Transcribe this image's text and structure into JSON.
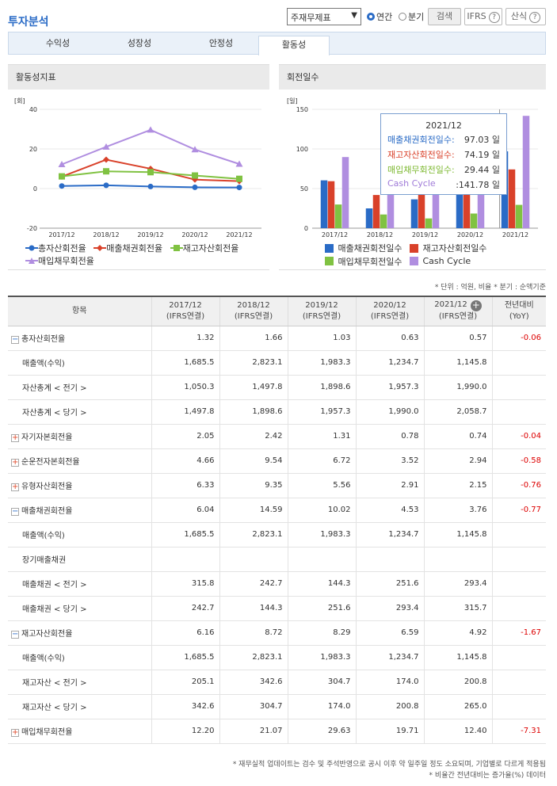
{
  "header": {
    "title": "투자분석",
    "select_value": "주재무제표",
    "radio_annual": "연간",
    "radio_quarter": "분기",
    "search_btn": "검색",
    "ifrs_btn": "IFRS",
    "formula_btn": "산식",
    "help_glyph": "?"
  },
  "tabs": [
    "수익성",
    "성장성",
    "안정성",
    "활동성"
  ],
  "active_tab": 3,
  "left_panel": {
    "title": "활동성지표",
    "unit": "[회]",
    "legend": [
      "총자산회전율",
      "매출채권회전율",
      "재고자산회전율",
      "매입채무회전율"
    ]
  },
  "right_panel": {
    "title": "회전일수",
    "unit": "[일]",
    "legend": [
      "매출채권회전일수",
      "재고자산회전일수",
      "매입채무회전일수",
      "Cash Cycle"
    ]
  },
  "tooltip": {
    "title": "2021/12",
    "rows": [
      {
        "label": "매출채권회전일수:",
        "value": "97.03 일",
        "color": "#2a6bc6"
      },
      {
        "label": "재고자산회전일수:",
        "value": "74.19 일",
        "color": "#d9412a"
      },
      {
        "label": "매입채무회전일수:",
        "value": "29.44 일",
        "color": "#7cb82f"
      },
      {
        "label": "Cash Cycle",
        "value": ":141.78 일",
        "color": "#9f7ad8"
      }
    ]
  },
  "colors": {
    "blue": "#2a6bc6",
    "red": "#d9412a",
    "green": "#80c242",
    "purple": "#b08ee0"
  },
  "chart_data": [
    {
      "type": "line",
      "title": "활동성지표",
      "ylabel": "[회]",
      "categories": [
        "2017/12",
        "2018/12",
        "2019/12",
        "2020/12",
        "2021/12"
      ],
      "ylim": [
        -20,
        40
      ],
      "yticks": [
        "40",
        "20",
        "0",
        "-20"
      ],
      "series": [
        {
          "name": "총자산회전율",
          "values": [
            1.32,
            1.66,
            1.03,
            0.63,
            0.57
          ]
        },
        {
          "name": "매출채권회전율",
          "values": [
            6.04,
            14.59,
            10.02,
            4.53,
            3.76
          ]
        },
        {
          "name": "재고자산회전율",
          "values": [
            6.16,
            8.72,
            8.29,
            6.59,
            4.92
          ]
        },
        {
          "name": "매입채무회전율",
          "values": [
            12.2,
            21.07,
            29.63,
            19.71,
            12.4
          ]
        }
      ]
    },
    {
      "type": "bar",
      "title": "회전일수",
      "ylabel": "[일]",
      "categories": [
        "2017/12",
        "2018/12",
        "2019/12",
        "2020/12",
        "2021/12"
      ],
      "ylim": [
        0,
        150
      ],
      "yticks": [
        "150",
        "100",
        "50",
        "0"
      ],
      "series": [
        {
          "name": "매출채권회전일수",
          "values": [
            60.4,
            25.0,
            36.4,
            80.6,
            97.03
          ]
        },
        {
          "name": "재고자산회전일수",
          "values": [
            59.3,
            41.9,
            44.0,
            55.4,
            74.19
          ]
        },
        {
          "name": "매입채무회전일수",
          "values": [
            29.9,
            17.3,
            12.3,
            18.5,
            29.44
          ]
        },
        {
          "name": "Cash Cycle",
          "values": [
            89.8,
            49.6,
            68.1,
            117.5,
            141.78
          ]
        }
      ]
    }
  ],
  "unit_note": "* 단위 : 억원, 비율   * 분기 : 순액기준",
  "table": {
    "headers": [
      "항목",
      "2017/12\n(IFRS연결)",
      "2018/12\n(IFRS연결)",
      "2019/12\n(IFRS연결)",
      "2020/12\n(IFRS연결)",
      "2021/12\n(IFRS연결)",
      "전년대비\n(YoY)"
    ],
    "rows": [
      {
        "label": "총자산회전율",
        "toggle": "minus",
        "values": [
          "1.32",
          "1.66",
          "1.03",
          "0.63",
          "0.57"
        ],
        "yoy": "-0.06"
      },
      {
        "label": "매출액(수익)",
        "sub": true,
        "values": [
          "1,685.5",
          "2,823.1",
          "1,983.3",
          "1,234.7",
          "1,145.8"
        ],
        "yoy": ""
      },
      {
        "label": "자산총계 < 전기 >",
        "sub": true,
        "values": [
          "1,050.3",
          "1,497.8",
          "1,898.6",
          "1,957.3",
          "1,990.0"
        ],
        "yoy": ""
      },
      {
        "label": "자산총계 < 당기 >",
        "sub": true,
        "values": [
          "1,497.8",
          "1,898.6",
          "1,957.3",
          "1,990.0",
          "2,058.7"
        ],
        "yoy": ""
      },
      {
        "label": "자기자본회전율",
        "toggle": "plus",
        "values": [
          "2.05",
          "2.42",
          "1.31",
          "0.78",
          "0.74"
        ],
        "yoy": "-0.04"
      },
      {
        "label": "순운전자본회전율",
        "toggle": "plus",
        "values": [
          "4.66",
          "9.54",
          "6.72",
          "3.52",
          "2.94"
        ],
        "yoy": "-0.58"
      },
      {
        "label": "유형자산회전율",
        "toggle": "plus",
        "values": [
          "6.33",
          "9.35",
          "5.56",
          "2.91",
          "2.15"
        ],
        "yoy": "-0.76"
      },
      {
        "label": "매출채권회전율",
        "toggle": "minus",
        "values": [
          "6.04",
          "14.59",
          "10.02",
          "4.53",
          "3.76"
        ],
        "yoy": "-0.77"
      },
      {
        "label": "매출액(수익)",
        "sub": true,
        "values": [
          "1,685.5",
          "2,823.1",
          "1,983.3",
          "1,234.7",
          "1,145.8"
        ],
        "yoy": ""
      },
      {
        "label": "장기매출채권",
        "sub": true,
        "values": [
          "",
          "",
          "",
          "",
          ""
        ],
        "yoy": ""
      },
      {
        "label": "매출채권 < 전기 >",
        "sub": true,
        "values": [
          "315.8",
          "242.7",
          "144.3",
          "251.6",
          "293.4"
        ],
        "yoy": ""
      },
      {
        "label": "매출채권 < 당기 >",
        "sub": true,
        "values": [
          "242.7",
          "144.3",
          "251.6",
          "293.4",
          "315.7"
        ],
        "yoy": ""
      },
      {
        "label": "재고자산회전율",
        "toggle": "minus",
        "values": [
          "6.16",
          "8.72",
          "8.29",
          "6.59",
          "4.92"
        ],
        "yoy": "-1.67"
      },
      {
        "label": "매출액(수익)",
        "sub": true,
        "values": [
          "1,685.5",
          "2,823.1",
          "1,983.3",
          "1,234.7",
          "1,145.8"
        ],
        "yoy": ""
      },
      {
        "label": "재고자산 < 전기 >",
        "sub": true,
        "values": [
          "205.1",
          "342.6",
          "304.7",
          "174.0",
          "200.8"
        ],
        "yoy": ""
      },
      {
        "label": "재고자산 < 당기 >",
        "sub": true,
        "values": [
          "342.6",
          "304.7",
          "174.0",
          "200.8",
          "265.0"
        ],
        "yoy": ""
      },
      {
        "label": "매입채무회전율",
        "toggle": "plus",
        "values": [
          "12.20",
          "21.07",
          "29.63",
          "19.71",
          "12.40"
        ],
        "yoy": "-7.31"
      }
    ]
  },
  "footnotes": [
    "* 재무실적 업데이트는 검수 및 주석반영으로 공시 이후 약 일주일 정도 소요되며, 기업별로 다르게 적용됨",
    "* 비율간 전년대비는 증가율(%) 데이터"
  ]
}
